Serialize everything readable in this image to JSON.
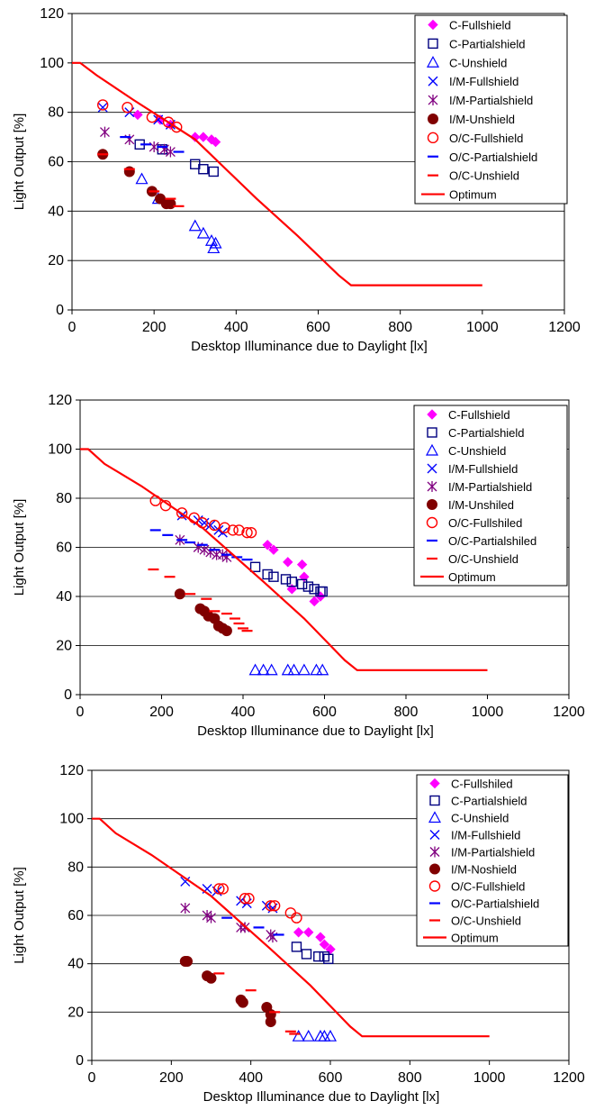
{
  "chart_data": [
    {
      "type": "scatter",
      "xlabel": "Desktop Illuminance due to Daylight [lx]",
      "ylabel": "Light Output [%]",
      "xlim": [
        0,
        1200
      ],
      "ylim": [
        0,
        120
      ],
      "xticks": [
        "0",
        "200",
        "400",
        "600",
        "800",
        "1000",
        "1200"
      ],
      "yticks": [
        "0",
        "20",
        "40",
        "60",
        "80",
        "100",
        "120"
      ],
      "grid": "horizontal",
      "legend_position": "top-right",
      "series": [
        {
          "name": "C-Fullshield",
          "marker": "diamond",
          "color": "#ff00ff",
          "points": [
            [
              160,
              79
            ],
            [
              215,
              77
            ],
            [
              240,
              75
            ],
            [
              300,
              70
            ],
            [
              320,
              70
            ],
            [
              340,
              69
            ],
            [
              350,
              68
            ]
          ]
        },
        {
          "name": "C-Partialshield",
          "marker": "square",
          "color": "#000080",
          "points": [
            [
              165,
              67
            ],
            [
              220,
              65
            ],
            [
              300,
              59
            ],
            [
              320,
              57
            ],
            [
              345,
              56
            ]
          ]
        },
        {
          "name": "C-Unshield",
          "marker": "triangle",
          "color": "#0000ff",
          "points": [
            [
              170,
              53
            ],
            [
              210,
              45
            ],
            [
              300,
              34
            ],
            [
              320,
              31
            ],
            [
              340,
              28
            ],
            [
              345,
              25
            ],
            [
              350,
              27
            ]
          ]
        },
        {
          "name": "I/M-Fullshield",
          "marker": "x",
          "color": "#0000ff",
          "points": [
            [
              75,
              82
            ],
            [
              140,
              80
            ],
            [
              210,
              77
            ],
            [
              240,
              75
            ]
          ]
        },
        {
          "name": "I/M-Partialshield",
          "marker": "star",
          "color": "#800080",
          "points": [
            [
              80,
              72
            ],
            [
              140,
              69
            ],
            [
              200,
              66
            ],
            [
              225,
              65
            ],
            [
              240,
              64
            ]
          ]
        },
        {
          "name": "I/M-Unshield",
          "marker": "circle-filled",
          "color": "#800000",
          "points": [
            [
              75,
              63
            ],
            [
              140,
              56
            ],
            [
              195,
              48
            ],
            [
              215,
              45
            ],
            [
              230,
              43
            ],
            [
              240,
              43
            ]
          ]
        },
        {
          "name": "O/C-Fullshield",
          "marker": "circle-open",
          "color": "#ff0000",
          "points": [
            [
              75,
              83
            ],
            [
              135,
              82
            ],
            [
              195,
              78
            ],
            [
              235,
              76
            ],
            [
              255,
              74
            ]
          ]
        },
        {
          "name": "O/C-Partialshield",
          "marker": "dash",
          "color": "#0000ff",
          "points": [
            [
              130,
              70
            ],
            [
              180,
              67
            ],
            [
              220,
              66
            ],
            [
              260,
              64
            ]
          ]
        },
        {
          "name": "O/C-Unshield",
          "marker": "dash",
          "color": "#ff0000",
          "points": [
            [
              75,
              63
            ],
            [
              140,
              57
            ],
            [
              200,
              48
            ],
            [
              240,
              45
            ],
            [
              260,
              42
            ]
          ]
        },
        {
          "name": "Optimum",
          "marker": "line",
          "color": "#ff0000",
          "points": [
            [
              0,
              100
            ],
            [
              20,
              100
            ],
            [
              60,
              95
            ],
            [
              150,
              85
            ],
            [
              300,
              69
            ],
            [
              450,
              45
            ],
            [
              550,
              30
            ],
            [
              650,
              14
            ],
            [
              680,
              10
            ],
            [
              1000,
              10
            ]
          ]
        }
      ]
    },
    {
      "type": "scatter",
      "xlabel": "Desktop Illuminance due to Daylight [lx]",
      "ylabel": "Light Output [%]",
      "xlim": [
        0,
        1200
      ],
      "ylim": [
        0,
        120
      ],
      "xticks": [
        "0",
        "200",
        "400",
        "600",
        "800",
        "1000",
        "1200"
      ],
      "yticks": [
        "0",
        "20",
        "40",
        "60",
        "80",
        "100",
        "120"
      ],
      "grid": "horizontal",
      "legend_position": "top-right",
      "series": [
        {
          "name": "C-Fullshield",
          "marker": "diamond",
          "color": "#ff00ff",
          "points": [
            [
              460,
              61
            ],
            [
              475,
              59
            ],
            [
              510,
              54
            ],
            [
              520,
              43
            ],
            [
              545,
              53
            ],
            [
              550,
              48
            ],
            [
              575,
              38
            ],
            [
              590,
              40
            ]
          ]
        },
        {
          "name": "C-Partialshield",
          "marker": "square",
          "color": "#000080",
          "points": [
            [
              430,
              52
            ],
            [
              460,
              49
            ],
            [
              475,
              48
            ],
            [
              505,
              47
            ],
            [
              520,
              46
            ],
            [
              545,
              45
            ],
            [
              560,
              44
            ],
            [
              575,
              43
            ],
            [
              590,
              42
            ],
            [
              595,
              42
            ]
          ]
        },
        {
          "name": "C-Unshield",
          "marker": "triangle",
          "color": "#0000ff",
          "points": [
            [
              430,
              10
            ],
            [
              450,
              10
            ],
            [
              470,
              10
            ],
            [
              510,
              10
            ],
            [
              525,
              10
            ],
            [
              550,
              10
            ],
            [
              580,
              10
            ],
            [
              595,
              10
            ]
          ]
        },
        {
          "name": "I/M-Fullshield",
          "marker": "x",
          "color": "#0000ff",
          "points": [
            [
              250,
              73
            ],
            [
              290,
              71
            ],
            [
              305,
              70
            ],
            [
              320,
              69
            ],
            [
              340,
              67
            ],
            [
              350,
              66
            ]
          ]
        },
        {
          "name": "I/M-Partialshield",
          "marker": "star",
          "color": "#800080",
          "points": [
            [
              245,
              63
            ],
            [
              290,
              60
            ],
            [
              305,
              59
            ],
            [
              320,
              58
            ],
            [
              335,
              57
            ],
            [
              350,
              57
            ],
            [
              360,
              56
            ]
          ]
        },
        {
          "name": "I/M-Unshiled",
          "marker": "circle-filled",
          "color": "#800000",
          "points": [
            [
              245,
              41
            ],
            [
              295,
              35
            ],
            [
              305,
              34
            ],
            [
              315,
              32
            ],
            [
              330,
              31
            ],
            [
              340,
              28
            ],
            [
              350,
              27
            ],
            [
              360,
              26
            ]
          ]
        },
        {
          "name": "O/C-Fullshiled",
          "marker": "circle-open",
          "color": "#ff0000",
          "points": [
            [
              185,
              79
            ],
            [
              210,
              77
            ],
            [
              250,
              74
            ],
            [
              280,
              72
            ],
            [
              300,
              70
            ],
            [
              330,
              69
            ],
            [
              355,
              68
            ],
            [
              375,
              67
            ],
            [
              390,
              67
            ],
            [
              410,
              66
            ],
            [
              420,
              66
            ]
          ]
        },
        {
          "name": "O/C-Partialshiled",
          "marker": "dash",
          "color": "#0000ff",
          "points": [
            [
              185,
              67
            ],
            [
              215,
              65
            ],
            [
              250,
              63
            ],
            [
              270,
              62
            ],
            [
              300,
              61
            ],
            [
              330,
              59
            ],
            [
              360,
              57
            ],
            [
              385,
              56
            ],
            [
              410,
              55
            ]
          ]
        },
        {
          "name": "O/C-Unshield",
          "marker": "dash",
          "color": "#ff0000",
          "points": [
            [
              180,
              51
            ],
            [
              220,
              48
            ],
            [
              270,
              41
            ],
            [
              310,
              39
            ],
            [
              330,
              34
            ],
            [
              360,
              33
            ],
            [
              380,
              31
            ],
            [
              390,
              29
            ],
            [
              400,
              27
            ],
            [
              410,
              26
            ]
          ]
        },
        {
          "name": "Optimum",
          "marker": "line",
          "color": "#ff0000",
          "points": [
            [
              0,
              100
            ],
            [
              20,
              100
            ],
            [
              60,
              94
            ],
            [
              150,
              85
            ],
            [
              300,
              68
            ],
            [
              450,
              46
            ],
            [
              550,
              31
            ],
            [
              650,
              14
            ],
            [
              680,
              10
            ],
            [
              1000,
              10
            ]
          ]
        }
      ]
    },
    {
      "type": "scatter",
      "xlabel": "Desktop Illuminance due to Daylight [lx]",
      "ylabel": "Light Output [%]",
      "xlim": [
        0,
        1200
      ],
      "ylim": [
        0,
        120
      ],
      "xticks": [
        "0",
        "200",
        "400",
        "600",
        "800",
        "1000",
        "1200"
      ],
      "yticks": [
        "0",
        "20",
        "40",
        "60",
        "80",
        "100",
        "120"
      ],
      "grid": "horizontal",
      "legend_position": "top-right",
      "series": [
        {
          "name": "C-Fullshiled",
          "marker": "diamond",
          "color": "#ff00ff",
          "points": [
            [
              520,
              53
            ],
            [
              545,
              53
            ],
            [
              575,
              51
            ],
            [
              585,
              48
            ],
            [
              600,
              46
            ]
          ]
        },
        {
          "name": "C-Partialshield",
          "marker": "square",
          "color": "#000080",
          "points": [
            [
              515,
              47
            ],
            [
              540,
              44
            ],
            [
              570,
              43
            ],
            [
              585,
              43
            ],
            [
              595,
              42
            ]
          ]
        },
        {
          "name": "C-Unshield",
          "marker": "triangle",
          "color": "#0000ff",
          "points": [
            [
              520,
              10
            ],
            [
              545,
              10
            ],
            [
              575,
              10
            ],
            [
              585,
              10
            ],
            [
              600,
              10
            ]
          ]
        },
        {
          "name": "I/M-Fullshield",
          "marker": "x",
          "color": "#0000ff",
          "points": [
            [
              235,
              74
            ],
            [
              290,
              71
            ],
            [
              315,
              70
            ],
            [
              375,
              66
            ],
            [
              390,
              65
            ],
            [
              440,
              64
            ],
            [
              455,
              63
            ]
          ]
        },
        {
          "name": "I/M-Partialshield",
          "marker": "star",
          "color": "#800080",
          "points": [
            [
              235,
              63
            ],
            [
              290,
              60
            ],
            [
              300,
              59
            ],
            [
              375,
              55
            ],
            [
              385,
              55
            ],
            [
              450,
              52
            ],
            [
              455,
              51
            ]
          ]
        },
        {
          "name": "I/M-Noshield",
          "marker": "circle-filled",
          "color": "#800000",
          "points": [
            [
              235,
              41
            ],
            [
              240,
              41
            ],
            [
              290,
              35
            ],
            [
              300,
              34
            ],
            [
              375,
              25
            ],
            [
              380,
              24
            ],
            [
              440,
              22
            ],
            [
              450,
              19
            ],
            [
              450,
              16
            ]
          ]
        },
        {
          "name": "O/C-Fullshield",
          "marker": "circle-open",
          "color": "#ff0000",
          "points": [
            [
              320,
              71
            ],
            [
              330,
              71
            ],
            [
              385,
              67
            ],
            [
              395,
              67
            ],
            [
              450,
              64
            ],
            [
              460,
              64
            ],
            [
              500,
              61
            ],
            [
              515,
              59
            ]
          ]
        },
        {
          "name": "O/C-Partialshield",
          "marker": "dash",
          "color": "#0000ff",
          "points": [
            [
              340,
              59
            ],
            [
              420,
              55
            ],
            [
              470,
              52
            ]
          ]
        },
        {
          "name": "O/C-Unshield",
          "marker": "dash",
          "color": "#ff0000",
          "points": [
            [
              320,
              36
            ],
            [
              400,
              29
            ],
            [
              460,
              20
            ],
            [
              500,
              12
            ],
            [
              510,
              11
            ]
          ]
        },
        {
          "name": "Optimum",
          "marker": "line",
          "color": "#ff0000",
          "points": [
            [
              0,
              100
            ],
            [
              20,
              100
            ],
            [
              60,
              94
            ],
            [
              150,
              85
            ],
            [
              300,
              68
            ],
            [
              450,
              46
            ],
            [
              550,
              31
            ],
            [
              650,
              14
            ],
            [
              680,
              10
            ],
            [
              1000,
              10
            ]
          ]
        }
      ]
    }
  ]
}
